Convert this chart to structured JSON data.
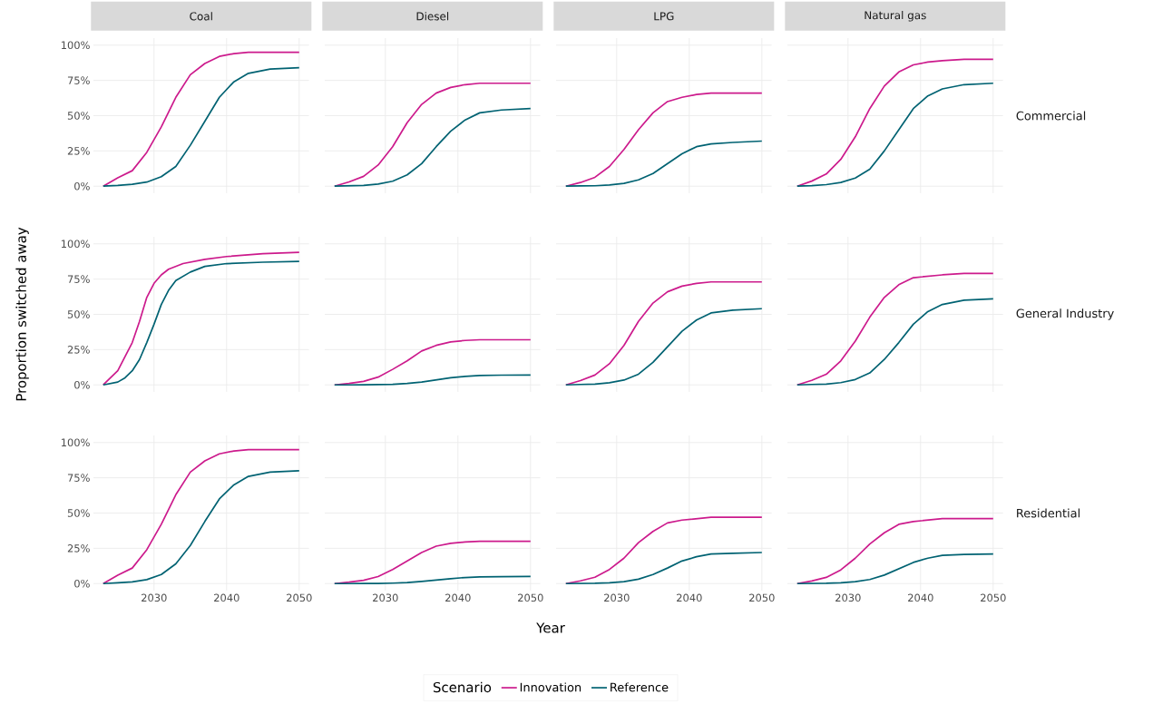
{
  "chart_data": [
    {
      "type": "line",
      "title": "Coal",
      "x": [
        2023,
        2025,
        2027,
        2029,
        2031,
        2033,
        2035,
        2037,
        2039,
        2041,
        2043,
        2046,
        2050
      ],
      "series": [
        {
          "color": "#cc1a8c",
          "values": [
            0,
            6,
            11,
            24,
            42,
            63,
            79,
            87,
            92,
            94,
            95,
            95,
            95
          ]
        },
        {
          "color": "#006272",
          "values": [
            0,
            0.5,
            1.3,
            2.9,
            6.7,
            14,
            29,
            46,
            63,
            74,
            80,
            83,
            84
          ]
        }
      ],
      "xlim": [
        2021.65,
        2051.35
      ],
      "ylim": [
        -5,
        105
      ],
      "xticks": [
        {
          "value": 2030,
          "label": null
        },
        {
          "value": 2040,
          "label": null
        },
        {
          "value": 2050,
          "label": null
        }
      ],
      "yticks": [
        {
          "value": 0,
          "label": "0%"
        },
        {
          "value": 25,
          "label": "25%"
        },
        {
          "value": 50,
          "label": "50%"
        },
        {
          "value": 75,
          "label": "75%"
        },
        {
          "value": 100,
          "label": "100%"
        }
      ],
      "grid": true,
      "tick_labels": "y"
    },
    {
      "type": "line",
      "title": "Diesel",
      "x": [
        2023,
        2025,
        2027,
        2029,
        2031,
        2033,
        2035,
        2037,
        2039,
        2041,
        2043,
        2046,
        2050
      ],
      "series": [
        {
          "color": "#cc1a8c",
          "values": [
            0,
            3,
            7,
            15,
            28,
            45,
            58,
            66,
            70,
            72,
            73,
            73,
            73
          ]
        },
        {
          "color": "#006272",
          "values": [
            0,
            0.3,
            0.6,
            1.5,
            3.5,
            8,
            16,
            28,
            39,
            47,
            52,
            54,
            55
          ]
        }
      ],
      "xlim": [
        2021.65,
        2051.35
      ],
      "ylim": [
        -5,
        105
      ],
      "xticks": [
        {
          "value": 2030,
          "label": null
        },
        {
          "value": 2040,
          "label": null
        },
        {
          "value": 2050,
          "label": null
        }
      ],
      "yticks": [
        {
          "value": 0,
          "label": null
        },
        {
          "value": 25,
          "label": null
        },
        {
          "value": 50,
          "label": null
        },
        {
          "value": 75,
          "label": null
        },
        {
          "value": 100,
          "label": null
        }
      ],
      "grid": true,
      "tick_labels": false
    },
    {
      "type": "line",
      "title": "LPG",
      "x": [
        2023,
        2025,
        2027,
        2029,
        2031,
        2033,
        2035,
        2037,
        2039,
        2041,
        2043,
        2046,
        2050
      ],
      "series": [
        {
          "color": "#cc1a8c",
          "values": [
            0,
            2.6,
            6.3,
            14,
            26,
            40,
            52,
            60,
            63,
            65,
            66,
            66,
            66
          ]
        },
        {
          "color": "#006272",
          "values": [
            0,
            0.2,
            0.3,
            0.9,
            2,
            4.5,
            9,
            16,
            23,
            28,
            30,
            31,
            32
          ]
        }
      ],
      "xlim": [
        2021.65,
        2051.35
      ],
      "ylim": [
        -5,
        105
      ],
      "xticks": [
        {
          "value": 2030,
          "label": null
        },
        {
          "value": 2040,
          "label": null
        },
        {
          "value": 2050,
          "label": null
        }
      ],
      "yticks": [
        {
          "value": 0,
          "label": null
        },
        {
          "value": 25,
          "label": null
        },
        {
          "value": 50,
          "label": null
        },
        {
          "value": 75,
          "label": null
        },
        {
          "value": 100,
          "label": null
        }
      ],
      "grid": true,
      "tick_labels": false
    },
    {
      "type": "line",
      "title": "Natural gas",
      "y2label": "Commercial",
      "x": [
        2023,
        2025,
        2027,
        2029,
        2031,
        2033,
        2035,
        2037,
        2039,
        2041,
        2043,
        2046,
        2050
      ],
      "series": [
        {
          "color": "#cc1a8c",
          "values": [
            0,
            3.6,
            8.6,
            19,
            35,
            55,
            71,
            81,
            86,
            88,
            89,
            90,
            90
          ]
        },
        {
          "color": "#006272",
          "values": [
            0,
            0.4,
            1.1,
            2.6,
            5.8,
            12,
            25,
            40,
            55,
            64,
            69,
            72,
            73
          ]
        }
      ],
      "xlim": [
        2021.65,
        2051.35
      ],
      "ylim": [
        -5,
        105
      ],
      "xticks": [
        {
          "value": 2030,
          "label": null
        },
        {
          "value": 2040,
          "label": null
        },
        {
          "value": 2050,
          "label": null
        }
      ],
      "yticks": [
        {
          "value": 0,
          "label": null
        },
        {
          "value": 25,
          "label": null
        },
        {
          "value": 50,
          "label": null
        },
        {
          "value": 75,
          "label": null
        },
        {
          "value": 100,
          "label": null
        }
      ],
      "grid": true,
      "tick_labels": false
    },
    {
      "type": "line",
      "ylabel": "Proportion switched away",
      "series": [
        {
          "color": "#cc1a8c",
          "x": [
            2023,
            2025,
            2027,
            2028,
            2029,
            2030,
            2031,
            2032,
            2034,
            2037,
            2040,
            2045,
            2050
          ],
          "values": [
            0,
            10,
            30,
            45,
            62,
            72,
            78,
            82,
            86,
            89,
            91,
            93,
            94
          ]
        },
        {
          "color": "#006272",
          "x": [
            2023,
            2025,
            2026,
            2027,
            2028,
            2029,
            2030,
            2031,
            2032,
            2033,
            2035,
            2037,
            2040,
            2045,
            2050
          ],
          "values": [
            0,
            2,
            5,
            10,
            18,
            30,
            43,
            57,
            67,
            74,
            80,
            84,
            86,
            87,
            87.5
          ]
        }
      ],
      "xlim": [
        2021.65,
        2051.35
      ],
      "ylim": [
        -5,
        105
      ],
      "xticks": [
        {
          "value": 2030,
          "label": null
        },
        {
          "value": 2040,
          "label": null
        },
        {
          "value": 2050,
          "label": null
        }
      ],
      "yticks": [
        {
          "value": 0,
          "label": "0%"
        },
        {
          "value": 25,
          "label": "25%"
        },
        {
          "value": 50,
          "label": "50%"
        },
        {
          "value": 75,
          "label": "75%"
        },
        {
          "value": 100,
          "label": "100%"
        }
      ],
      "grid": true,
      "tick_labels": "y"
    },
    {
      "type": "line",
      "x": [
        2023,
        2025,
        2027,
        2029,
        2031,
        2033,
        2035,
        2037,
        2039,
        2041,
        2043,
        2046,
        2050
      ],
      "series": [
        {
          "color": "#cc1a8c",
          "values": [
            0,
            1,
            2.5,
            5.5,
            11,
            17,
            24,
            28,
            30.5,
            31.5,
            32,
            32,
            32
          ]
        },
        {
          "color": "#006272",
          "values": [
            0,
            0,
            0.1,
            0.2,
            0.4,
            1,
            2,
            3.5,
            5,
            6,
            6.6,
            6.9,
            7
          ]
        }
      ],
      "xlim": [
        2021.65,
        2051.35
      ],
      "ylim": [
        -5,
        105
      ],
      "xticks": [
        {
          "value": 2030,
          "label": null
        },
        {
          "value": 2040,
          "label": null
        },
        {
          "value": 2050,
          "label": null
        }
      ],
      "yticks": [
        {
          "value": 0,
          "label": null
        },
        {
          "value": 25,
          "label": null
        },
        {
          "value": 50,
          "label": null
        },
        {
          "value": 75,
          "label": null
        },
        {
          "value": 100,
          "label": null
        }
      ],
      "grid": true,
      "tick_labels": false
    },
    {
      "type": "line",
      "x": [
        2023,
        2025,
        2027,
        2029,
        2031,
        2033,
        2035,
        2037,
        2039,
        2041,
        2043,
        2046,
        2050
      ],
      "series": [
        {
          "color": "#cc1a8c",
          "values": [
            0,
            3,
            7,
            15,
            28,
            45,
            58,
            66,
            70,
            72,
            73,
            73,
            73
          ]
        },
        {
          "color": "#006272",
          "values": [
            0,
            0.3,
            0.5,
            1.5,
            3.4,
            7.6,
            16,
            27,
            38,
            46,
            51,
            53,
            54
          ]
        }
      ],
      "xlim": [
        2021.65,
        2051.35
      ],
      "ylim": [
        -5,
        105
      ],
      "xticks": [
        {
          "value": 2030,
          "label": null
        },
        {
          "value": 2040,
          "label": null
        },
        {
          "value": 2050,
          "label": null
        }
      ],
      "yticks": [
        {
          "value": 0,
          "label": null
        },
        {
          "value": 25,
          "label": null
        },
        {
          "value": 50,
          "label": null
        },
        {
          "value": 75,
          "label": null
        },
        {
          "value": 100,
          "label": null
        }
      ],
      "grid": true,
      "tick_labels": false
    },
    {
      "type": "line",
      "y2label": "General Industry",
      "x": [
        2023,
        2025,
        2027,
        2029,
        2031,
        2033,
        2035,
        2037,
        2039,
        2041,
        2043,
        2046,
        2050
      ],
      "series": [
        {
          "color": "#cc1a8c",
          "values": [
            0,
            3.2,
            7.5,
            17,
            31,
            48,
            62,
            71,
            76,
            77,
            78,
            79,
            79
          ]
        },
        {
          "color": "#006272",
          "values": [
            0,
            0.3,
            0.6,
            1.6,
            3.8,
            8.5,
            18,
            30,
            43,
            52,
            57,
            60,
            61
          ]
        }
      ],
      "xlim": [
        2021.65,
        2051.35
      ],
      "ylim": [
        -5,
        105
      ],
      "xticks": [
        {
          "value": 2030,
          "label": null
        },
        {
          "value": 2040,
          "label": null
        },
        {
          "value": 2050,
          "label": null
        }
      ],
      "yticks": [
        {
          "value": 0,
          "label": null
        },
        {
          "value": 25,
          "label": null
        },
        {
          "value": 50,
          "label": null
        },
        {
          "value": 75,
          "label": null
        },
        {
          "value": 100,
          "label": null
        }
      ],
      "grid": true,
      "tick_labels": false
    },
    {
      "type": "line",
      "x": [
        2023,
        2025,
        2027,
        2029,
        2031,
        2033,
        2035,
        2037,
        2039,
        2041,
        2043,
        2046,
        2050
      ],
      "series": [
        {
          "color": "#cc1a8c",
          "values": [
            0,
            6,
            11,
            24,
            42,
            63,
            79,
            87,
            92,
            94,
            95,
            95,
            95
          ]
        },
        {
          "color": "#006272",
          "values": [
            0,
            0.5,
            1.2,
            2.8,
            6.4,
            14,
            27,
            44,
            60,
            70,
            76,
            79,
            80
          ]
        }
      ],
      "xlim": [
        2021.65,
        2051.35
      ],
      "ylim": [
        -5,
        105
      ],
      "xticks": [
        2030,
        2040,
        2050
      ],
      "yticks": [
        {
          "value": 0,
          "label": "0%"
        },
        {
          "value": 25,
          "label": "25%"
        },
        {
          "value": 50,
          "label": "50%"
        },
        {
          "value": 75,
          "label": "75%"
        },
        {
          "value": 100,
          "label": "100%"
        }
      ],
      "grid": true
    },
    {
      "type": "line",
      "xlabel": "Year",
      "legend": "bottom",
      "legend_title": "Scenario",
      "x": [
        2023,
        2025,
        2027,
        2029,
        2031,
        2033,
        2035,
        2037,
        2039,
        2041,
        2043,
        2046,
        2050
      ],
      "series": [
        {
          "name": "Innovation",
          "color": "#cc1a8c",
          "values": [
            0,
            1,
            2.3,
            5,
            10,
            16,
            22,
            26.5,
            28.5,
            29.5,
            30,
            30,
            30
          ]
        },
        {
          "name": "Reference",
          "color": "#006272",
          "values": [
            0,
            0,
            0.1,
            0.1,
            0.3,
            0.7,
            1.5,
            2.5,
            3.5,
            4.3,
            4.7,
            4.9,
            5
          ]
        }
      ],
      "xlim": [
        2021.65,
        2051.35
      ],
      "ylim": [
        -5,
        105
      ],
      "xticks": [
        2030,
        2040,
        2050
      ],
      "yticks": [
        {
          "value": 0,
          "label": null
        },
        {
          "value": 25,
          "label": null
        },
        {
          "value": 50,
          "label": null
        },
        {
          "value": 75,
          "label": null
        },
        {
          "value": 100,
          "label": null
        }
      ],
      "grid": true,
      "tick_labels": "x"
    },
    {
      "type": "line",
      "x": [
        2023,
        2025,
        2027,
        2029,
        2031,
        2033,
        2035,
        2037,
        2039,
        2041,
        2043,
        2046,
        2050
      ],
      "series": [
        {
          "color": "#cc1a8c",
          "values": [
            0,
            1.9,
            4.5,
            10,
            18,
            29,
            37,
            43,
            45,
            46,
            47,
            47,
            47
          ]
        },
        {
          "color": "#006272",
          "values": [
            0,
            0.1,
            0.2,
            0.6,
            1.4,
            3.1,
            6.4,
            11,
            16,
            19,
            21,
            21.5,
            22
          ]
        }
      ],
      "xlim": [
        2021.65,
        2051.35
      ],
      "ylim": [
        -5,
        105
      ],
      "xticks": [
        2030,
        2040,
        2050
      ],
      "yticks": [
        {
          "value": 0,
          "label": null
        },
        {
          "value": 25,
          "label": null
        },
        {
          "value": 50,
          "label": null
        },
        {
          "value": 75,
          "label": null
        },
        {
          "value": 100,
          "label": null
        }
      ],
      "grid": true,
      "tick_labels": "x"
    },
    {
      "type": "line",
      "y2label": "Residential",
      "x": [
        2023,
        2025,
        2027,
        2029,
        2031,
        2033,
        2035,
        2037,
        2039,
        2041,
        2043,
        2046,
        2050
      ],
      "series": [
        {
          "color": "#cc1a8c",
          "values": [
            0,
            1.8,
            4.4,
            9.7,
            18,
            28,
            36,
            42,
            44,
            45,
            46,
            46,
            46
          ]
        },
        {
          "color": "#006272",
          "values": [
            0,
            0.1,
            0.2,
            0.6,
            1.3,
            2.9,
            6,
            10.5,
            15,
            18,
            20,
            20.7,
            21
          ]
        }
      ],
      "xlim": [
        2021.65,
        2051.35
      ],
      "ylim": [
        -5,
        105
      ],
      "xticks": [
        2030,
        2040,
        2050
      ],
      "yticks": [
        {
          "value": 0,
          "label": null
        },
        {
          "value": 25,
          "label": null
        },
        {
          "value": 50,
          "label": null
        },
        {
          "value": 75,
          "label": null
        },
        {
          "value": 100,
          "label": null
        }
      ],
      "grid": true,
      "tick_labels": "x"
    }
  ]
}
